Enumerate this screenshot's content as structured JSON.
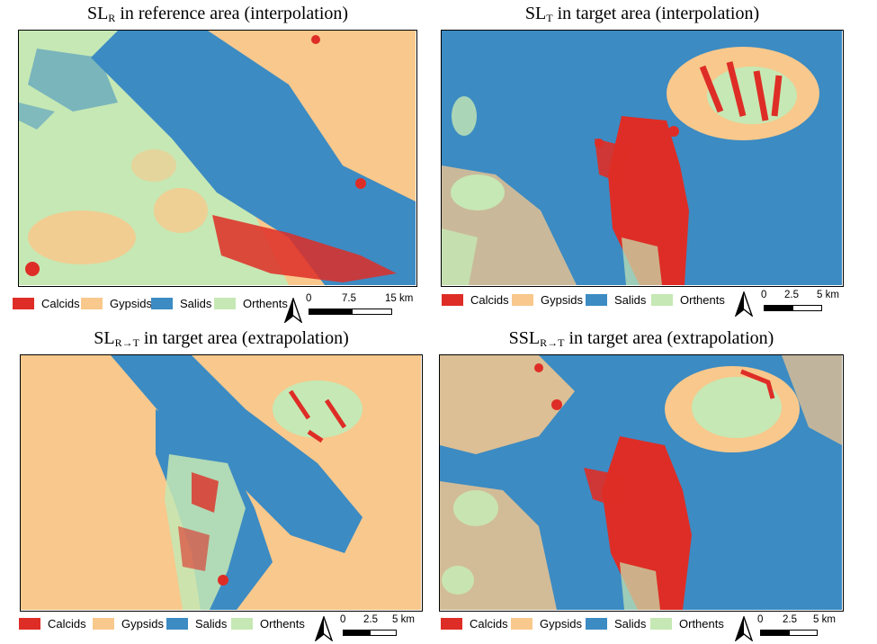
{
  "colors": {
    "calcids": "#de2d26",
    "gypsids": "#f8c88c",
    "salids": "#3c8bc3",
    "orthents": "#c6e8b4"
  },
  "panels": [
    {
      "title_main": "SL",
      "title_sub": "R",
      "title_rest": " in reference area (interpolation)",
      "scale": {
        "ticks": [
          "0",
          "7.5",
          "15 km"
        ]
      }
    },
    {
      "title_main": "SL",
      "title_sub": "T",
      "title_rest": " in target area (interpolation)",
      "scale": {
        "ticks": [
          "0",
          "2.5",
          "5 km"
        ]
      }
    },
    {
      "title_main": "SL",
      "title_sub": "R→T",
      "title_rest": " in target area (extrapolation)",
      "scale": {
        "ticks": [
          "0",
          "2.5",
          "5 km"
        ]
      }
    },
    {
      "title_main": "SSL",
      "title_sub": "R→T",
      "title_rest": " in target area (extrapolation)",
      "scale": {
        "ticks": [
          "0",
          "2.5",
          "5 km"
        ]
      }
    }
  ],
  "legend": {
    "calcids": "Calcids",
    "gypsids": "Gypsids",
    "salids": "Salids",
    "orthents": "Orthents"
  },
  "north_arrow_icon": "north-arrow-icon"
}
